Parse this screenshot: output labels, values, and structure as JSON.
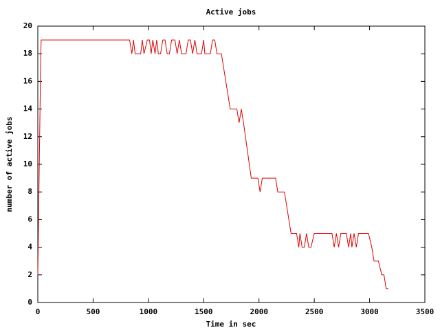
{
  "chart_data": {
    "type": "line",
    "title": "Active jobs",
    "xlabel": "Time in sec",
    "ylabel": "number of active jobs",
    "x": [
      0,
      5,
      10,
      15,
      20,
      25,
      30,
      830,
      850,
      865,
      880,
      930,
      945,
      960,
      990,
      1010,
      1025,
      1040,
      1060,
      1075,
      1090,
      1110,
      1130,
      1150,
      1170,
      1190,
      1210,
      1240,
      1260,
      1280,
      1300,
      1340,
      1360,
      1380,
      1400,
      1420,
      1440,
      1480,
      1500,
      1510,
      1560,
      1580,
      1600,
      1620,
      1660,
      1740,
      1800,
      1820,
      1840,
      1860,
      1930,
      1990,
      2010,
      2030,
      2150,
      2170,
      2230,
      2290,
      2340,
      2360,
      2370,
      2390,
      2410,
      2430,
      2450,
      2470,
      2500,
      2660,
      2680,
      2700,
      2720,
      2740,
      2790,
      2810,
      2830,
      2840,
      2860,
      2880,
      2900,
      2990,
      3020,
      3040,
      3080,
      3110,
      3130,
      3150,
      3170
    ],
    "values": [
      2,
      5,
      8,
      11,
      14,
      17,
      19,
      19,
      18,
      19,
      18,
      18,
      19,
      18,
      19,
      19,
      18,
      19,
      18,
      19,
      18,
      18,
      19,
      19,
      18,
      18,
      19,
      19,
      18,
      19,
      18,
      18,
      19,
      19,
      18,
      19,
      18,
      18,
      19,
      18,
      18,
      19,
      19,
      18,
      18,
      14,
      14,
      13,
      14,
      13,
      9,
      9,
      8,
      9,
      9,
      8,
      8,
      5,
      5,
      4,
      5,
      4,
      4,
      5,
      4,
      4,
      5,
      5,
      4,
      5,
      4,
      5,
      5,
      4,
      5,
      4,
      5,
      4,
      5,
      5,
      4,
      3,
      3,
      2,
      2,
      1,
      1
    ],
    "color": "#dd0000",
    "xlim": [
      0,
      3500
    ],
    "ylim": [
      0,
      20
    ],
    "xticks": [
      0,
      500,
      1000,
      1500,
      2000,
      2500,
      3000,
      3500
    ],
    "yticks": [
      0,
      2,
      4,
      6,
      8,
      10,
      12,
      14,
      16,
      18,
      20
    ]
  }
}
